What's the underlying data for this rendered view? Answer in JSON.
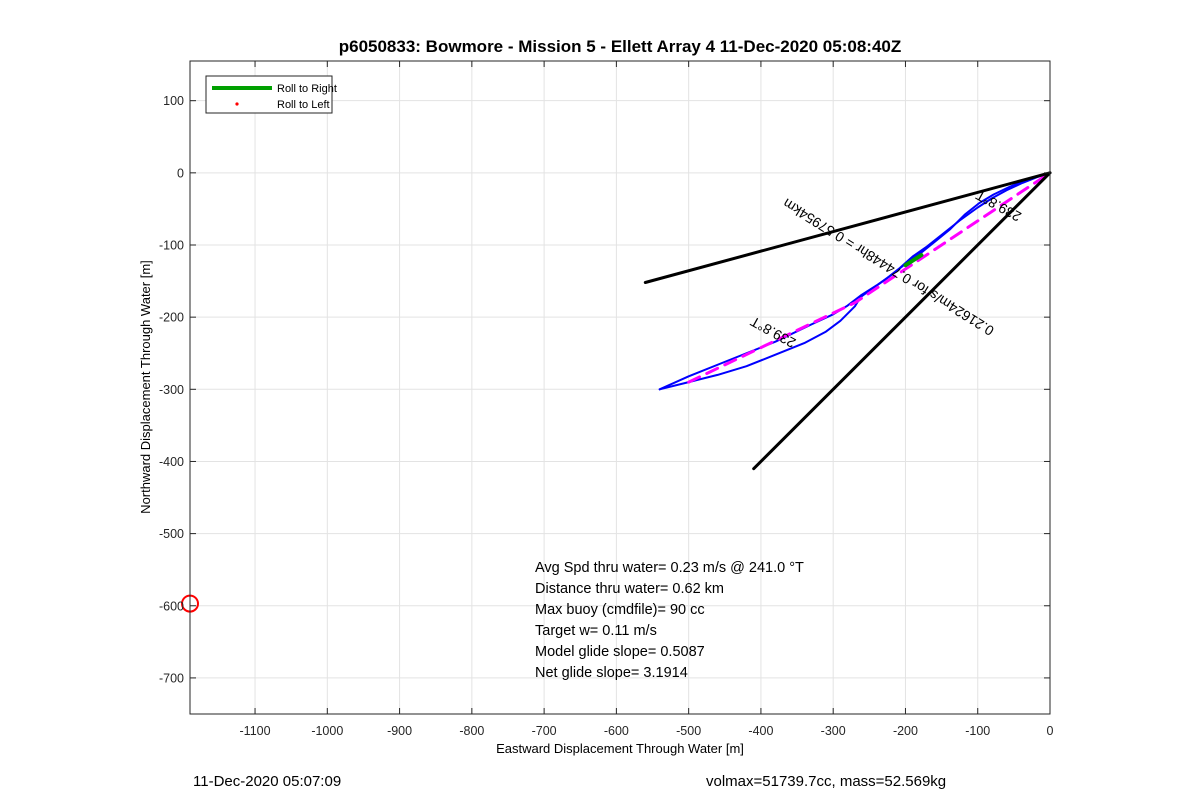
{
  "chart_data": {
    "type": "line",
    "title": "p6050833: Bowmore - Mission 5 - Ellett Array 4 11-Dec-2020 05:08:40Z",
    "xlabel": "Eastward Displacement Through Water [m]",
    "ylabel": "Northward Displacement Through Water [m]",
    "xlim": [
      -1190,
      0
    ],
    "ylim": [
      -750,
      155
    ],
    "xticks": [
      -1100,
      -1000,
      -900,
      -800,
      -700,
      -600,
      -500,
      -400,
      -300,
      -200,
      -100,
      0
    ],
    "yticks": [
      100,
      0,
      -100,
      -200,
      -300,
      -400,
      -500,
      -600,
      -700
    ],
    "grid": true,
    "legend": {
      "placement": "top-left",
      "entries": [
        {
          "label": "Roll to Right",
          "color": "#00a000",
          "style": "line"
        },
        {
          "label": "Roll to Left",
          "color": "#ff0000",
          "style": "dot"
        }
      ]
    },
    "colors": {
      "track": "#0000ff",
      "dive_segments": "#ff00ff",
      "heading_lines": "#000000",
      "current_marker": "#ff0000",
      "roll_right": "#00a000"
    },
    "series": [
      {
        "role": "glider-track",
        "color": "#0000ff",
        "points": [
          [
            -540,
            -300
          ],
          [
            -500,
            -290
          ],
          [
            -460,
            -280
          ],
          [
            -420,
            -268
          ],
          [
            -380,
            -252
          ],
          [
            -340,
            -236
          ],
          [
            -310,
            -220
          ],
          [
            -290,
            -205
          ],
          [
            -270,
            -185
          ],
          [
            -262,
            -172
          ],
          [
            -248,
            -162
          ],
          [
            -228,
            -148
          ],
          [
            -208,
            -132
          ],
          [
            -190,
            -116
          ],
          [
            -170,
            -102
          ],
          [
            -150,
            -86
          ],
          [
            -125,
            -66
          ],
          [
            -100,
            -48
          ],
          [
            -80,
            -35
          ],
          [
            -60,
            -24
          ],
          [
            -38,
            -14
          ],
          [
            -18,
            -6
          ],
          [
            0,
            0
          ]
        ]
      },
      {
        "role": "track-reverse",
        "color": "#0000ff",
        "points": [
          [
            -540,
            -300
          ],
          [
            -500,
            -282
          ],
          [
            -440,
            -258
          ],
          [
            -380,
            -234
          ],
          [
            -330,
            -210
          ],
          [
            -300,
            -196
          ],
          [
            -280,
            -184
          ],
          [
            -262,
            -170
          ],
          [
            -240,
            -156
          ],
          [
            -220,
            -142
          ],
          [
            -200,
            -126
          ],
          [
            -180,
            -112
          ],
          [
            -160,
            -96
          ],
          [
            -138,
            -78
          ],
          [
            -118,
            -58
          ],
          [
            -98,
            -42
          ],
          [
            -78,
            -30
          ],
          [
            -55,
            -19
          ],
          [
            -30,
            -9
          ],
          [
            0,
            0
          ]
        ]
      },
      {
        "role": "dive-segment",
        "color": "#ff00ff",
        "points": [
          [
            -500,
            -290
          ],
          [
            -270,
            -180
          ],
          [
            -180,
            -120
          ],
          [
            0,
            0
          ]
        ]
      },
      {
        "role": "roll-right-segment",
        "color": "#00a000",
        "points": [
          [
            -200,
            -128
          ],
          [
            -178,
            -114
          ]
        ]
      },
      {
        "role": "heading-line-left",
        "color": "#000000",
        "points": [
          [
            0,
            0
          ],
          [
            -560,
            -152
          ]
        ]
      },
      {
        "role": "heading-line-right",
        "color": "#000000",
        "points": [
          [
            0,
            0
          ],
          [
            -410,
            -410
          ]
        ]
      }
    ],
    "current_marker": {
      "x": -1190,
      "y": -597
    },
    "annotations": [
      {
        "text": "239.8°T",
        "x": -380,
        "y": -215,
        "angle_deg": 209
      },
      {
        "text": "0.21624m/s for 0.74448hr = 0.57954km",
        "x": -220,
        "y": -125,
        "angle_deg": 212
      },
      {
        "text": "239.8°T",
        "x": -68,
        "y": -40,
        "angle_deg": 209
      }
    ],
    "info_lines": [
      "Avg Spd thru water=  0.23 m/s @ 241.0 °T",
      "Distance thru water=  0.62 km",
      "Max buoy (cmdfile)= 90 cc",
      "Target w= 0.11 m/s",
      "Model glide slope= 0.5087",
      "Net glide slope= 3.1914"
    ]
  },
  "footer": {
    "start_time": "11-Dec-2020 05:07:09",
    "vehicle_params": "volmax=51739.7cc, mass=52.569kg"
  }
}
